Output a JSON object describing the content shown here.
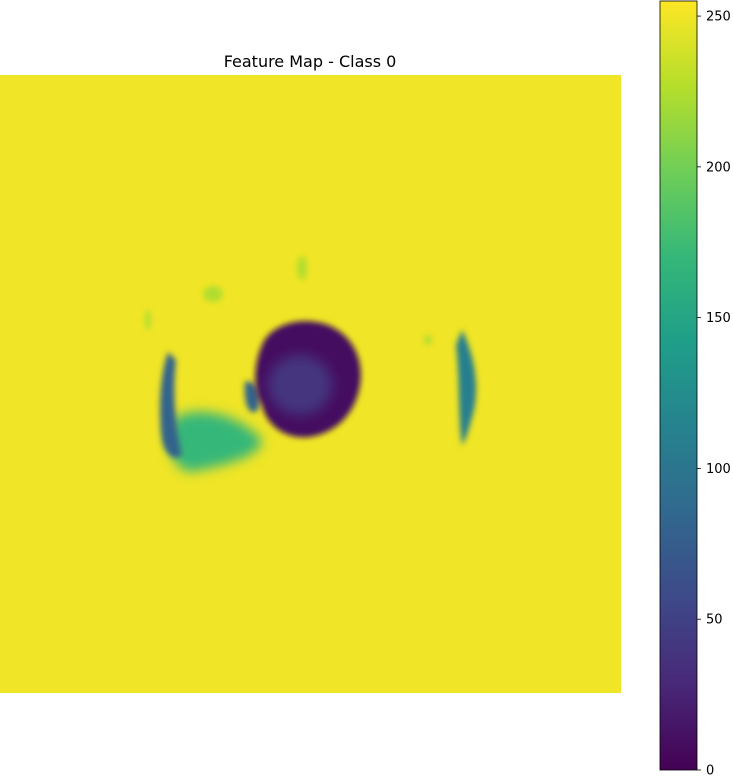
{
  "chart_data": {
    "type": "heatmap",
    "title": "Feature Map - Class 0",
    "xlabel": "",
    "ylabel": "",
    "axes_visible": false,
    "colormap": "viridis",
    "colormap_stops": [
      "#440154",
      "#482878",
      "#3e4989",
      "#31688e",
      "#26828e",
      "#1f9e89",
      "#35b779",
      "#6ece58",
      "#b5de2b",
      "#fde725"
    ],
    "colorbar": {
      "range": [
        0,
        255
      ],
      "ticks": [
        0,
        50,
        100,
        150,
        200,
        250
      ],
      "tick_labels": [
        "0",
        "50",
        "100",
        "150",
        "200",
        "250"
      ]
    },
    "background_value": 250,
    "regions": [
      {
        "shape": "blob",
        "description": "dark central blob",
        "value": 10
      },
      {
        "shape": "blob",
        "description": "inner lighter core",
        "value": 40
      },
      {
        "shape": "blob",
        "description": "left arc",
        "value": 80
      },
      {
        "shape": "blob",
        "description": "left lower wedge",
        "value": 170
      },
      {
        "shape": "blob",
        "description": "right edge arc",
        "value": 110
      },
      {
        "shape": "blob",
        "description": "faint upper spots",
        "value": 225
      }
    ]
  }
}
